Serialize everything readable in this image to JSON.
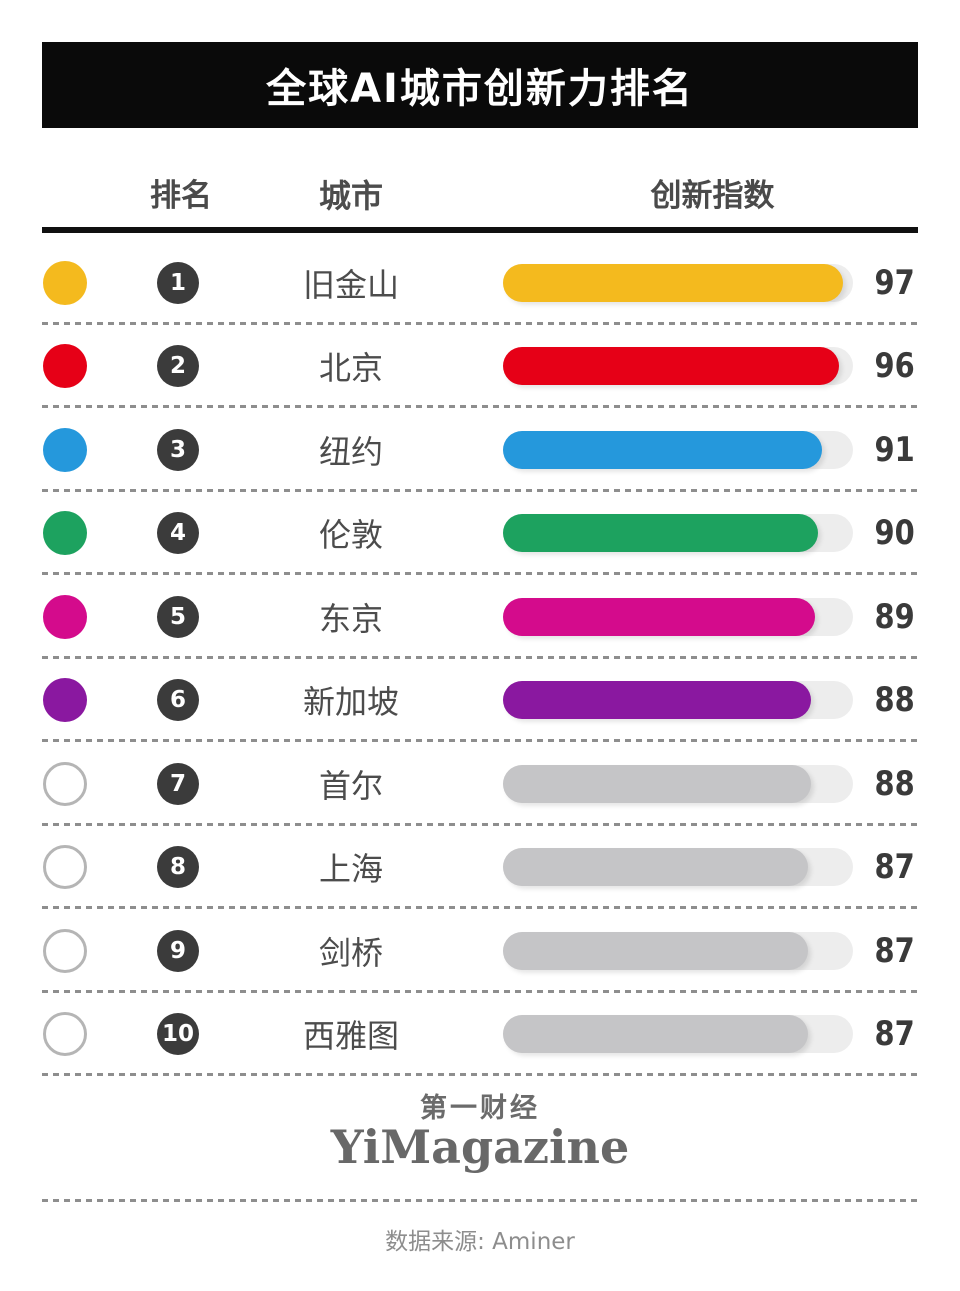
{
  "title": "全球AI城市创新力排名",
  "columns": {
    "rank": "排名",
    "city": "城市",
    "index": "创新指数"
  },
  "rows": [
    {
      "rank": "1",
      "city": "旧金山",
      "value": 97,
      "color": "#F4BA1E",
      "dot_filled": true
    },
    {
      "rank": "2",
      "city": "北京",
      "value": 96,
      "color": "#E60017",
      "dot_filled": true
    },
    {
      "rank": "3",
      "city": "纽约",
      "value": 91,
      "color": "#2598DC",
      "dot_filled": true
    },
    {
      "rank": "4",
      "city": "伦敦",
      "value": 90,
      "color": "#1DA25F",
      "dot_filled": true
    },
    {
      "rank": "5",
      "city": "东京",
      "value": 89,
      "color": "#D40B8C",
      "dot_filled": true
    },
    {
      "rank": "6",
      "city": "新加坡",
      "value": 88,
      "color": "#8A18A0",
      "dot_filled": true
    },
    {
      "rank": "7",
      "city": "首尔",
      "value": 88,
      "color": null,
      "dot_filled": false
    },
    {
      "rank": "8",
      "city": "上海",
      "value": 87,
      "color": null,
      "dot_filled": false
    },
    {
      "rank": "9",
      "city": "剑桥",
      "value": 87,
      "color": null,
      "dot_filled": false
    },
    {
      "rank": "10",
      "city": "西雅图",
      "value": 87,
      "color": null,
      "dot_filled": false
    }
  ],
  "footer": {
    "logo_cn": "第一财经",
    "logo_en": "YiMagazine",
    "source": "数据来源: Aminer"
  },
  "colors": {
    "banner_bg": "#0A0A0A",
    "banner_text": "#FFFFFF",
    "rank_badge": "#3B3B3B",
    "gray_bar": "#C5C5C7",
    "track": "#EDEDED",
    "hollow_dot_border": "#B5B5B5",
    "separator": "#8E8E8E"
  },
  "chart_data": {
    "type": "bar",
    "orientation": "horizontal",
    "title": "全球AI城市创新力排名",
    "categories": [
      "旧金山",
      "北京",
      "纽约",
      "伦敦",
      "东京",
      "新加坡",
      "首尔",
      "上海",
      "剑桥",
      "西雅图"
    ],
    "values": [
      97,
      96,
      91,
      90,
      89,
      88,
      88,
      87,
      87,
      87
    ],
    "ranks": [
      1,
      2,
      3,
      4,
      5,
      6,
      7,
      8,
      9,
      10
    ],
    "bar_colors": [
      "#F4BA1E",
      "#E60017",
      "#2598DC",
      "#1DA25F",
      "#D40B8C",
      "#8A18A0",
      "#C5C5C7",
      "#C5C5C7",
      "#C5C5C7",
      "#C5C5C7"
    ],
    "xlabel": "创新指数",
    "ylabel": "城市",
    "xlim": [
      0,
      100
    ],
    "grid": false,
    "value_labels_shown": true,
    "source": "数据来源: Aminer"
  }
}
